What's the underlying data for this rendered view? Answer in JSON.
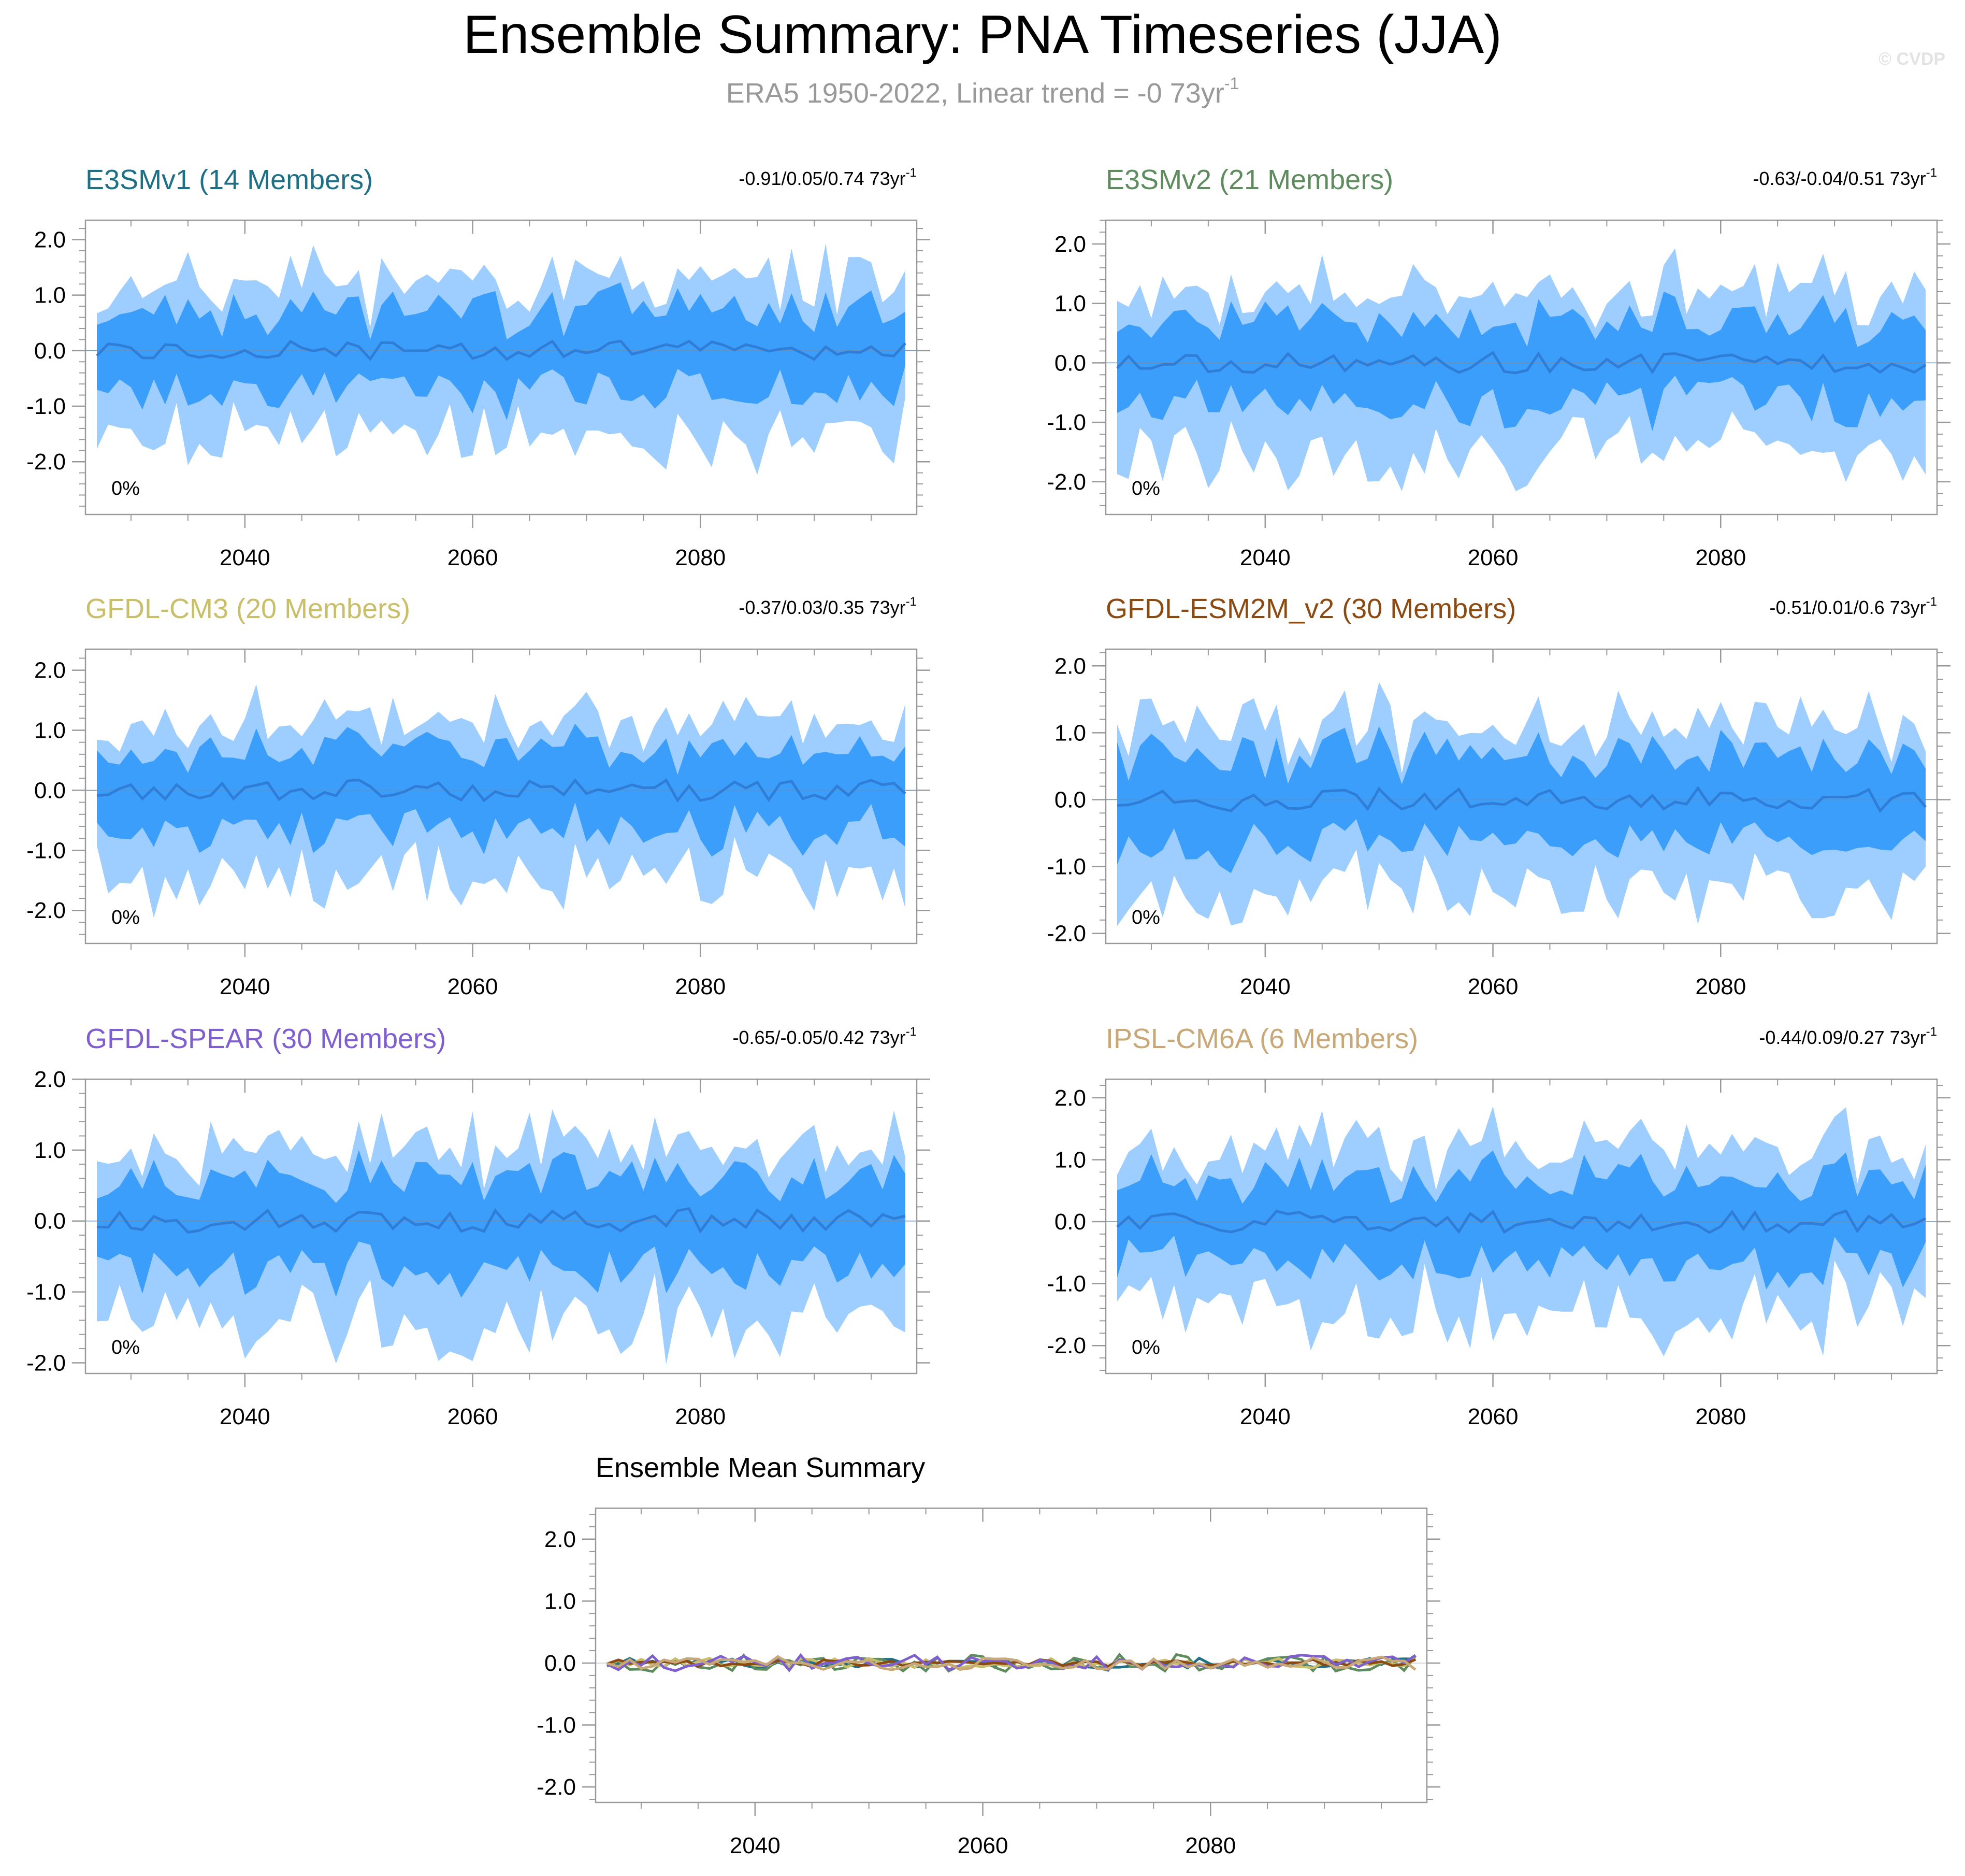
{
  "title": "Ensemble Summary: PNA Timeseries (JJA)",
  "subtitle": {
    "text": "ERA5 1950-2022, Linear trend = -0 73yr",
    "unit_sup": "-1"
  },
  "watermark": "© CVDP",
  "colors": {
    "outer_band": "#9dceff",
    "inner_band": "#3a9efa",
    "mean_line": "#2f7dd6",
    "frame": "#999999"
  },
  "chart_data": [
    {
      "type": "area",
      "title": "E3SMv1 (14 Members)",
      "title_color": "#1f6f86",
      "stat": "-0.91/0.05/0.74 73yr",
      "stat_sup": "-1",
      "pct": "0%",
      "xlim": [
        2026,
        2099
      ],
      "ylim": [
        -2.95,
        2.35
      ],
      "xticks": [
        2040,
        2060,
        2080
      ],
      "yticks": [
        2.0,
        1.0,
        0.0,
        -1.0,
        -2.0
      ],
      "ytick_labels": [
        "2.0",
        "1.0",
        "0.0",
        "-1.0",
        "-2.0"
      ],
      "xtick_labels": [
        "2040",
        "2060",
        "2080"
      ],
      "variability": 1.0,
      "seed": 11
    },
    {
      "type": "area",
      "title": "E3SMv2 (21 Members)",
      "title_color": "#5e8c5e",
      "stat": "-0.63/-0.04/0.51 73yr",
      "stat_sup": "-1",
      "pct": "0%",
      "xlim": [
        2026,
        2099
      ],
      "ylim": [
        -2.55,
        2.4
      ],
      "xticks": [
        2040,
        2060,
        2080
      ],
      "yticks": [
        2.0,
        1.0,
        0.0,
        -1.0,
        -2.0
      ],
      "ytick_labels": [
        "2.0",
        "1.0",
        "0.0",
        "-1.0",
        "-2.0"
      ],
      "xtick_labels": [
        "2040",
        "2060",
        "2080"
      ],
      "variability": 0.95,
      "seed": 23
    },
    {
      "type": "area",
      "title": "GFDL-CM3 (20 Members)",
      "title_color": "#c9bf6a",
      "stat": "-0.37/0.03/0.35 73yr",
      "stat_sup": "-1",
      "pct": "0%",
      "xlim": [
        2026,
        2099
      ],
      "ylim": [
        -2.55,
        2.35
      ],
      "xticks": [
        2040,
        2060,
        2080
      ],
      "yticks": [
        2.0,
        1.0,
        0.0,
        -1.0,
        -2.0
      ],
      "ytick_labels": [
        "2.0",
        "1.0",
        "0.0",
        "-1.0",
        "-2.0"
      ],
      "xtick_labels": [
        "2040",
        "2060",
        "2080"
      ],
      "variability": 0.85,
      "seed": 37
    },
    {
      "type": "area",
      "title": "GFDL-ESM2M_v2 (30 Members)",
      "title_color": "#8a4a12",
      "stat": "-0.51/0.01/0.6 73yr",
      "stat_sup": "-1",
      "pct": "0%",
      "xlim": [
        2026,
        2099
      ],
      "ylim": [
        -2.15,
        2.25
      ],
      "xticks": [
        2040,
        2060,
        2080
      ],
      "yticks": [
        2.0,
        1.0,
        0.0,
        -1.0,
        -2.0
      ],
      "ytick_labels": [
        "2.0",
        "1.0",
        "0.0",
        "-1.0",
        "-2.0"
      ],
      "xtick_labels": [
        "2040",
        "2060",
        "2080"
      ],
      "variability": 0.8,
      "seed": 41
    },
    {
      "type": "area",
      "title": "GFDL-SPEAR (30 Members)",
      "title_color": "#7f5fcf",
      "stat": "-0.65/-0.05/0.42 73yr",
      "stat_sup": "-1",
      "pct": "0%",
      "xlim": [
        2026,
        2099
      ],
      "ylim": [
        -2.15,
        2.0
      ],
      "xticks": [
        2040,
        2060,
        2080
      ],
      "yticks": [
        2.0,
        1.0,
        0.0,
        -1.0,
        -2.0
      ],
      "ytick_labels": [
        "2.0",
        "1.0",
        "0.0",
        "-1.0",
        "-2.0"
      ],
      "xtick_labels": [
        "2040",
        "2060",
        "2080"
      ],
      "variability": 0.8,
      "seed": 53
    },
    {
      "type": "area",
      "title": "IPSL-CM6A (6 Members)",
      "title_color": "#c9a877",
      "stat": "-0.44/0.09/0.27 73yr",
      "stat_sup": "-1",
      "pct": "0%",
      "xlim": [
        2026,
        2099
      ],
      "ylim": [
        -2.45,
        2.3
      ],
      "xticks": [
        2040,
        2060,
        2080
      ],
      "yticks": [
        2.0,
        1.0,
        0.0,
        -1.0,
        -2.0
      ],
      "ytick_labels": [
        "2.0",
        "1.0",
        "0.0",
        "-1.0",
        "-2.0"
      ],
      "xtick_labels": [
        "2040",
        "2060",
        "2080"
      ],
      "variability": 0.9,
      "seed": 67
    },
    {
      "type": "line",
      "title": "Ensemble Mean Summary",
      "title_color": "#000000",
      "xlim": [
        2026,
        2099
      ],
      "ylim": [
        -2.25,
        2.5
      ],
      "xticks": [
        2040,
        2060,
        2080
      ],
      "yticks": [
        2.0,
        1.0,
        0.0,
        -1.0,
        -2.0
      ],
      "ytick_labels": [
        "2.0",
        "1.0",
        "0.0",
        "-1.0",
        "-2.0"
      ],
      "xtick_labels": [
        "2040",
        "2060",
        "2080"
      ],
      "series": [
        {
          "name": "E3SMv1",
          "color": "#1f6f86",
          "amp": 0.08,
          "seed": 101
        },
        {
          "name": "E3SMv2",
          "color": "#5e8c5e",
          "amp": 0.14,
          "seed": 202
        },
        {
          "name": "GFDL-CM3",
          "color": "#c9bf6a",
          "amp": 0.08,
          "seed": 303
        },
        {
          "name": "GFDL-ESM2M_v2",
          "color": "#8a4a12",
          "amp": 0.06,
          "seed": 404
        },
        {
          "name": "GFDL-SPEAR",
          "color": "#7f5fcf",
          "amp": 0.13,
          "seed": 505
        },
        {
          "name": "IPSL-CM6A",
          "color": "#c9a877",
          "amp": 0.11,
          "seed": 606
        }
      ]
    }
  ]
}
